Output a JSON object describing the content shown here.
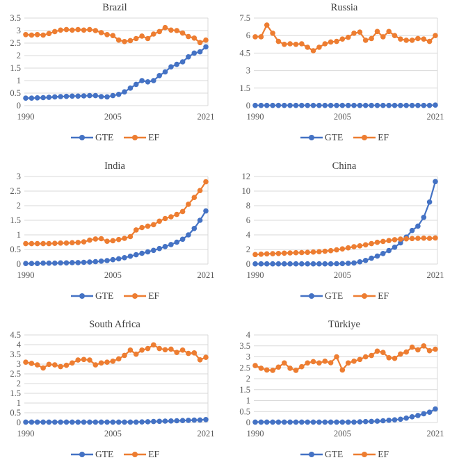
{
  "figure": {
    "background": "#ffffff",
    "layout": "2x3-grid",
    "grid": "horizontal-only"
  },
  "colors": {
    "gte_series": "#4472C4",
    "ef_series": "#ED7D31",
    "gridline": "#D9D9D9",
    "axis_text": "#595959",
    "title_text": "#3f3f3f"
  },
  "legend_labels": {
    "gte": "GTE",
    "ef": "EF"
  },
  "chart_data": [
    {
      "type": "line",
      "title": "Brazil",
      "x_ticks": [
        "1990",
        "2005",
        "2021"
      ],
      "year_start": 1990,
      "year_end": 2021,
      "ylim": [
        0,
        3.5
      ],
      "yticks": [
        0,
        0.5,
        1,
        1.5,
        2,
        2.5,
        3,
        3.5
      ],
      "legend_position": "bottom",
      "series": [
        {
          "name": "GTE",
          "color": "#4472C4",
          "values": [
            0.3,
            0.3,
            0.31,
            0.32,
            0.33,
            0.35,
            0.36,
            0.37,
            0.38,
            0.38,
            0.39,
            0.4,
            0.4,
            0.36,
            0.35,
            0.4,
            0.45,
            0.55,
            0.7,
            0.85,
            1.0,
            0.95,
            1.0,
            1.2,
            1.35,
            1.55,
            1.65,
            1.75,
            1.95,
            2.1,
            2.15,
            2.35
          ]
        },
        {
          "name": "EF",
          "color": "#ED7D31",
          "values": [
            2.84,
            2.82,
            2.84,
            2.82,
            2.88,
            2.96,
            3.02,
            3.04,
            3.02,
            3.04,
            3.02,
            3.04,
            3.0,
            2.92,
            2.84,
            2.8,
            2.62,
            2.56,
            2.6,
            2.68,
            2.78,
            2.68,
            2.86,
            2.96,
            3.12,
            3.02,
            3.0,
            2.9,
            2.76,
            2.7,
            2.52,
            2.62
          ]
        }
      ]
    },
    {
      "type": "line",
      "title": "Russia",
      "x_ticks": [
        "1990",
        "2005",
        "2021"
      ],
      "year_start": 1990,
      "year_end": 2021,
      "ylim": [
        0,
        7.5
      ],
      "yticks": [
        0,
        1.5,
        3,
        4.5,
        6,
        7.5
      ],
      "legend_position": "bottom",
      "series": [
        {
          "name": "GTE",
          "color": "#4472C4",
          "values": [
            0.02,
            0.02,
            0.02,
            0.02,
            0.02,
            0.02,
            0.02,
            0.02,
            0.02,
            0.02,
            0.02,
            0.02,
            0.02,
            0.02,
            0.02,
            0.02,
            0.02,
            0.02,
            0.02,
            0.02,
            0.02,
            0.02,
            0.02,
            0.02,
            0.02,
            0.02,
            0.02,
            0.02,
            0.02,
            0.02,
            0.02,
            0.05
          ]
        },
        {
          "name": "EF",
          "color": "#ED7D31",
          "values": [
            5.9,
            5.9,
            6.9,
            6.2,
            5.5,
            5.25,
            5.3,
            5.25,
            5.3,
            5.0,
            4.7,
            5.0,
            5.3,
            5.45,
            5.5,
            5.7,
            5.85,
            6.2,
            6.3,
            5.6,
            5.75,
            6.35,
            5.9,
            6.35,
            6.0,
            5.7,
            5.6,
            5.6,
            5.75,
            5.7,
            5.5,
            6.0
          ]
        }
      ]
    },
    {
      "type": "line",
      "title": "India",
      "x_ticks": [
        "1990",
        "2005",
        "2021"
      ],
      "year_start": 1990,
      "year_end": 2021,
      "ylim": [
        0,
        3
      ],
      "yticks": [
        0,
        0.5,
        1,
        1.5,
        2,
        2.5,
        3
      ],
      "legend_position": "bottom",
      "series": [
        {
          "name": "GTE",
          "color": "#4472C4",
          "values": [
            0.02,
            0.02,
            0.02,
            0.03,
            0.03,
            0.03,
            0.04,
            0.04,
            0.05,
            0.05,
            0.06,
            0.07,
            0.08,
            0.1,
            0.12,
            0.15,
            0.18,
            0.22,
            0.27,
            0.32,
            0.37,
            0.42,
            0.47,
            0.53,
            0.6,
            0.67,
            0.75,
            0.85,
            1.0,
            1.22,
            1.5,
            1.82
          ]
        },
        {
          "name": "EF",
          "color": "#ED7D31",
          "values": [
            0.7,
            0.7,
            0.7,
            0.7,
            0.7,
            0.71,
            0.72,
            0.72,
            0.73,
            0.74,
            0.76,
            0.82,
            0.86,
            0.87,
            0.78,
            0.8,
            0.84,
            0.88,
            0.94,
            1.17,
            1.25,
            1.3,
            1.35,
            1.47,
            1.56,
            1.62,
            1.7,
            1.8,
            2.05,
            2.28,
            2.52,
            2.82
          ]
        }
      ]
    },
    {
      "type": "line",
      "title": "China",
      "x_ticks": [
        "1990",
        "2005",
        "2021"
      ],
      "year_start": 1990,
      "year_end": 2021,
      "ylim": [
        0,
        12
      ],
      "yticks": [
        0,
        2,
        4,
        6,
        8,
        10,
        12
      ],
      "legend_position": "bottom",
      "series": [
        {
          "name": "GTE",
          "color": "#4472C4",
          "values": [
            0.03,
            0.03,
            0.03,
            0.03,
            0.03,
            0.03,
            0.03,
            0.03,
            0.03,
            0.03,
            0.03,
            0.03,
            0.03,
            0.03,
            0.05,
            0.07,
            0.1,
            0.15,
            0.3,
            0.5,
            0.8,
            1.1,
            1.45,
            1.85,
            2.3,
            2.9,
            3.7,
            4.6,
            5.2,
            6.4,
            8.5,
            11.3
          ]
        },
        {
          "name": "EF",
          "color": "#ED7D31",
          "values": [
            1.3,
            1.35,
            1.4,
            1.42,
            1.45,
            1.5,
            1.52,
            1.55,
            1.57,
            1.6,
            1.65,
            1.7,
            1.76,
            1.84,
            1.94,
            2.08,
            2.22,
            2.38,
            2.5,
            2.64,
            2.8,
            2.98,
            3.1,
            3.22,
            3.34,
            3.42,
            3.46,
            3.5,
            3.52,
            3.55,
            3.52,
            3.58
          ]
        }
      ]
    },
    {
      "type": "line",
      "title": "South Africa",
      "x_ticks": [
        "1990",
        "2005",
        "2021"
      ],
      "year_start": 1990,
      "year_end": 2021,
      "ylim": [
        0,
        4.5
      ],
      "yticks": [
        0,
        0.5,
        1,
        1.5,
        2,
        2.5,
        3,
        3.5,
        4,
        4.5
      ],
      "legend_position": "bottom",
      "series": [
        {
          "name": "GTE",
          "color": "#4472C4",
          "values": [
            0.02,
            0.02,
            0.02,
            0.02,
            0.02,
            0.02,
            0.02,
            0.02,
            0.02,
            0.02,
            0.02,
            0.02,
            0.02,
            0.02,
            0.02,
            0.02,
            0.02,
            0.02,
            0.02,
            0.02,
            0.03,
            0.04,
            0.05,
            0.06,
            0.07,
            0.08,
            0.09,
            0.1,
            0.11,
            0.12,
            0.13,
            0.15
          ]
        },
        {
          "name": "EF",
          "color": "#ED7D31",
          "values": [
            3.1,
            3.04,
            2.96,
            2.8,
            2.99,
            2.96,
            2.87,
            2.94,
            3.06,
            3.21,
            3.24,
            3.21,
            2.96,
            3.06,
            3.1,
            3.15,
            3.27,
            3.45,
            3.72,
            3.51,
            3.72,
            3.8,
            3.99,
            3.8,
            3.74,
            3.77,
            3.6,
            3.72,
            3.55,
            3.58,
            3.22,
            3.35
          ]
        }
      ]
    },
    {
      "type": "line",
      "title": "Türkiye",
      "x_ticks": [
        "1990",
        "2005",
        "2021"
      ],
      "year_start": 1990,
      "year_end": 2021,
      "ylim": [
        0,
        4
      ],
      "yticks": [
        0,
        0.5,
        1,
        1.5,
        2,
        2.5,
        3,
        3.5,
        4
      ],
      "legend_position": "bottom",
      "series": [
        {
          "name": "GTE",
          "color": "#4472C4",
          "values": [
            0.02,
            0.02,
            0.02,
            0.02,
            0.02,
            0.02,
            0.02,
            0.02,
            0.02,
            0.02,
            0.02,
            0.02,
            0.02,
            0.02,
            0.02,
            0.02,
            0.02,
            0.02,
            0.03,
            0.04,
            0.05,
            0.06,
            0.08,
            0.1,
            0.12,
            0.15,
            0.2,
            0.26,
            0.32,
            0.4,
            0.47,
            0.62
          ]
        },
        {
          "name": "EF",
          "color": "#ED7D31",
          "values": [
            2.6,
            2.48,
            2.4,
            2.38,
            2.53,
            2.72,
            2.48,
            2.38,
            2.55,
            2.72,
            2.78,
            2.72,
            2.8,
            2.73,
            3.0,
            2.4,
            2.72,
            2.8,
            2.88,
            3.0,
            3.06,
            3.26,
            3.2,
            2.96,
            2.93,
            3.13,
            3.22,
            3.44,
            3.32,
            3.5,
            3.28,
            3.35
          ]
        }
      ]
    }
  ]
}
